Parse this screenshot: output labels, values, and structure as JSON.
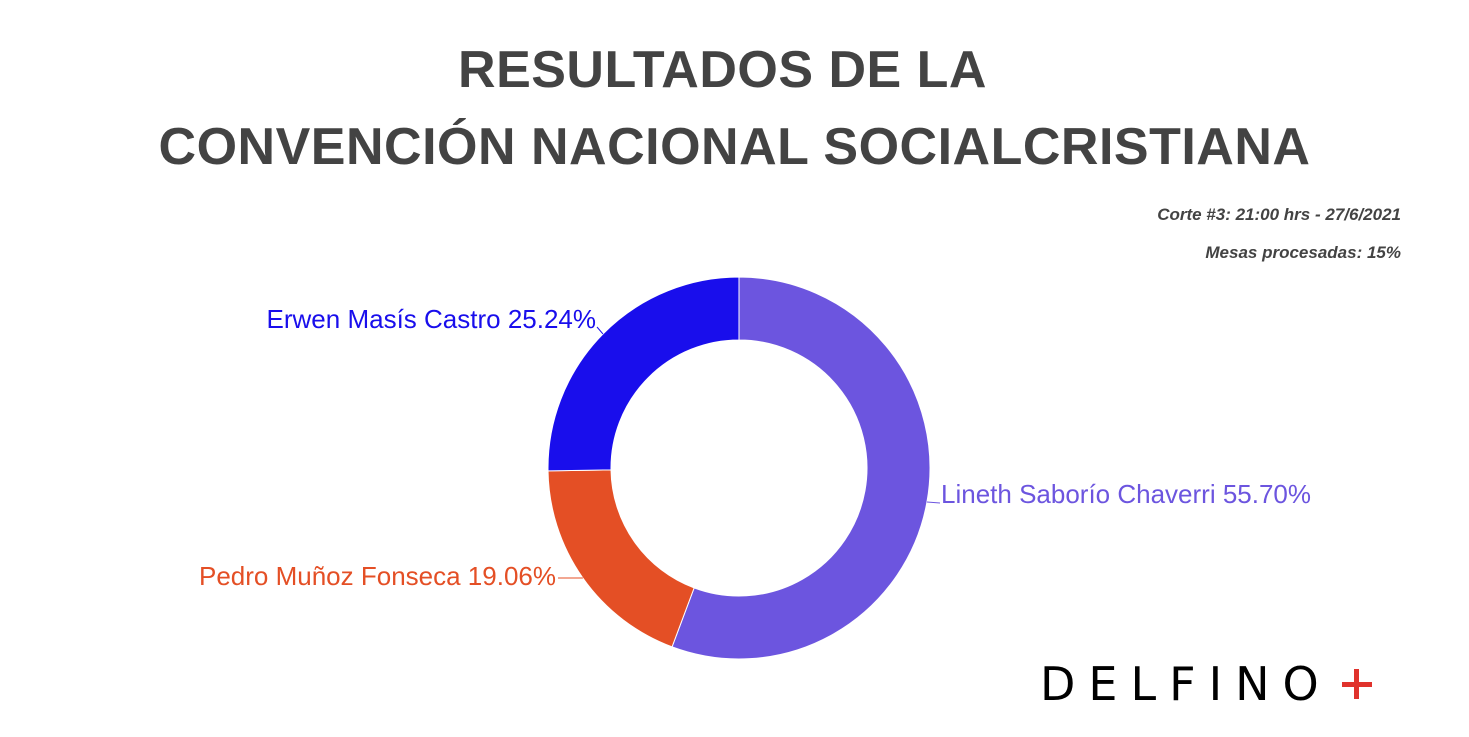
{
  "header": {
    "title_line1": "RESULTADOS DE LA",
    "title_line2": "CONVENCIÓN NACIONAL SOCIALCRISTIANA",
    "cut_info": "Corte #3: 21:00 hrs - 27/6/2021",
    "tables_processed": "Mesas procesadas: 15%"
  },
  "chart_data": {
    "type": "pie",
    "donut": true,
    "title": "RESULTADOS DE LA CONVENCIÓN NACIONAL SOCIALCRISTIANA",
    "legend": "none",
    "slices": [
      {
        "name": "Lineth Saborío Chaverri",
        "value": 55.7,
        "label": "Lineth Saborío Chaverri 55.70%",
        "color": "#6c55df"
      },
      {
        "name": "Pedro Muñoz Fonseca",
        "value": 19.06,
        "label": "Pedro Muñoz Fonseca 19.06%",
        "color": "#e44f25"
      },
      {
        "name": "Erwen Masís Castro",
        "value": 25.24,
        "label": "Erwen Masís Castro 25.24%",
        "color": "#190eec"
      }
    ]
  },
  "logo": {
    "text": "DELFINO",
    "plus_color": "#e0322c"
  }
}
